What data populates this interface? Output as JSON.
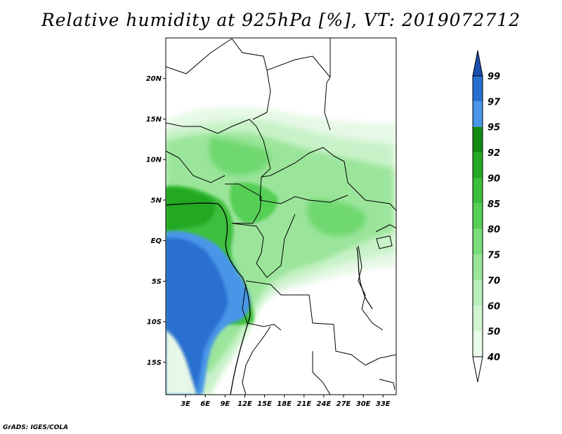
{
  "title": "Relative humidity at 925hPa [%], VT: 2019072712",
  "credit": "GrADS: IGES/COLA",
  "map": {
    "lat_labels": [
      "20N",
      "15N",
      "10N",
      "5N",
      "EQ",
      "5S",
      "10S",
      "15S"
    ],
    "lon_labels": [
      "3E",
      "6E",
      "9E",
      "12E",
      "15E",
      "18E",
      "21E",
      "24E",
      "27E",
      "30E",
      "33E"
    ],
    "lat_range": [
      -19,
      25
    ],
    "lon_range": [
      0,
      35
    ]
  },
  "colorbar": {
    "levels": [
      "40",
      "50",
      "60",
      "70",
      "75",
      "80",
      "85",
      "90",
      "92",
      "95",
      "97",
      "99"
    ],
    "colors": [
      "#ffffff",
      "#e9fbe9",
      "#d2f5d2",
      "#b9eeb9",
      "#9ae59a",
      "#78dc78",
      "#55cf55",
      "#3cbf3c",
      "#22a822",
      "#128a12",
      "#4a96e8",
      "#2a6fd0",
      "#1b4fb0"
    ]
  }
}
